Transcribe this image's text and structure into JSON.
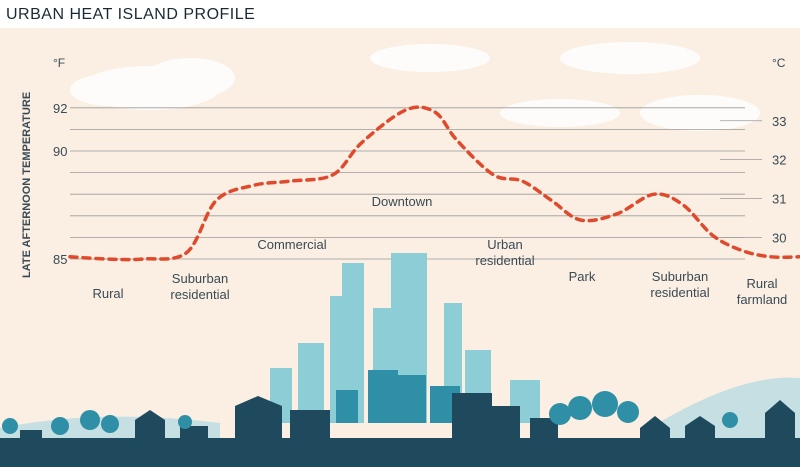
{
  "title": "URBAN HEAT ISLAND PROFILE",
  "colors": {
    "background": "#fbefe3",
    "curve": "#e04a2c",
    "gridline": "#9a9a9a",
    "city_light": "#8ccdd6",
    "city_mid": "#2f8fa6",
    "city_dark": "#1f4a5e"
  },
  "chart_data": {
    "type": "line",
    "title": "URBAN HEAT ISLAND PROFILE",
    "ylabel": "LATE AFTERNOON TEMPERATURE",
    "yunit_left": "°F",
    "yunit_right": "°C",
    "ylim_f": [
      85,
      92
    ],
    "left_ticks": [
      {
        "value": 85,
        "label": "85"
      },
      {
        "value": 90,
        "label": "90"
      },
      {
        "value": 92,
        "label": "92"
      }
    ],
    "right_ticks": [
      {
        "value": 30,
        "label": "30"
      },
      {
        "value": 31,
        "label": "31"
      },
      {
        "value": 32,
        "label": "32"
      },
      {
        "value": 33,
        "label": "33"
      }
    ],
    "zones": [
      "Rural",
      "Suburban residential",
      "Commercial",
      "Downtown",
      "Urban residential",
      "Park",
      "Suburban residential",
      "Rural farmland"
    ],
    "series": [
      {
        "x": [
          0,
          0.05,
          0.1,
          0.16,
          0.2,
          0.25,
          0.3,
          0.36,
          0.4,
          0.46,
          0.5,
          0.53,
          0.58,
          0.62,
          0.66,
          0.7,
          0.75,
          0.8,
          0.84,
          0.88,
          0.92,
          0.96,
          1.0
        ],
        "values": [
          85.1,
          85.0,
          85.0,
          85.3,
          87.7,
          88.4,
          88.6,
          88.9,
          90.4,
          91.9,
          91.8,
          90.5,
          88.9,
          88.6,
          87.7,
          86.8,
          87.1,
          88.0,
          87.5,
          86.1,
          85.4,
          85.1,
          85.1
        ]
      }
    ]
  }
}
